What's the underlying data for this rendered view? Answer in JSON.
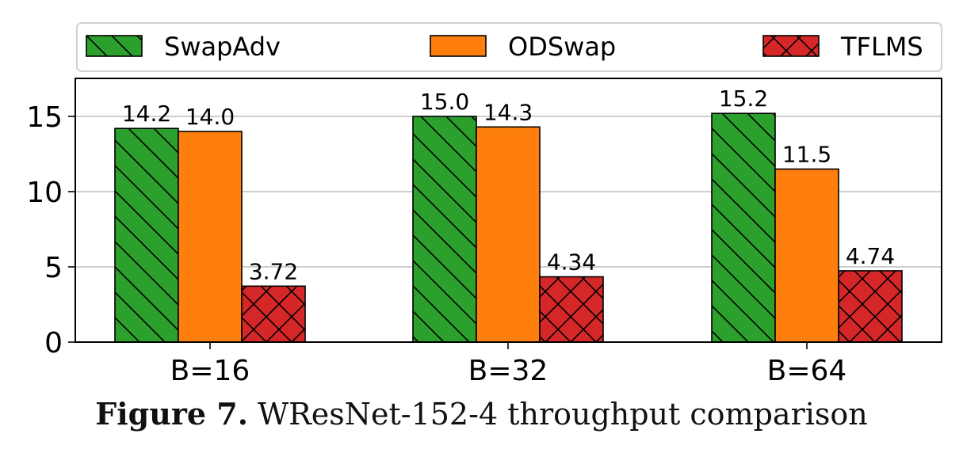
{
  "caption": {
    "label": "Figure 7.",
    "text": "WResNet-152-4 throughput comparison"
  },
  "chart_data": {
    "type": "bar",
    "categories": [
      "B=16",
      "B=32",
      "B=64"
    ],
    "series": [
      {
        "name": "SwapAdv",
        "values": [
          14.2,
          15.0,
          15.2
        ],
        "labels": [
          "14.2",
          "15.0",
          "15.2"
        ],
        "color": "#2ca02c",
        "hatch": "backslash"
      },
      {
        "name": "ODSwap",
        "values": [
          14.0,
          14.3,
          11.5
        ],
        "labels": [
          "14.0",
          "14.3",
          "11.5"
        ],
        "color": "#ff7f0e",
        "hatch": "none"
      },
      {
        "name": "TFLMS",
        "values": [
          3.72,
          4.34,
          4.74
        ],
        "labels": [
          "3.72",
          "4.34",
          "4.74"
        ],
        "color": "#d62728",
        "hatch": "cross"
      }
    ],
    "yticks": [
      "0",
      "5",
      "10",
      "15"
    ],
    "ylim": [
      0,
      17.5
    ],
    "grid": "horizontal",
    "legend": "top"
  }
}
